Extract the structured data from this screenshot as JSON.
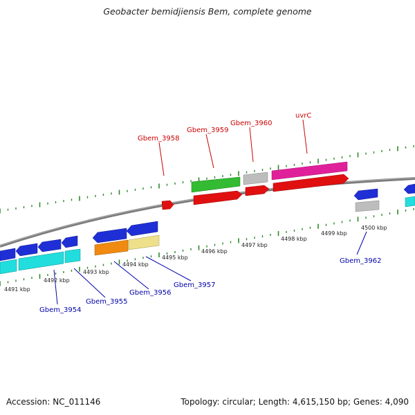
{
  "header": {
    "title": "Geobacter bemidjiensis Bem, complete genome"
  },
  "footer": {
    "accession": "Accession: NC_011146",
    "summary": "Topology: circular; Length: 4,615,150 bp; Genes: 4,090"
  },
  "scale_labels": [
    "4491 kbp",
    "4492 kbp",
    "4493 kbp",
    "4494 kbp",
    "4495 kbp",
    "4496 kbp",
    "4497 kbp",
    "4498 kbp",
    "4499 kbp",
    "4500 kbp"
  ],
  "gene_labels_top": [
    "Gbem_3958",
    "Gbem_3959",
    "Gbem_3960",
    "uvrC"
  ],
  "gene_labels_bottom": [
    "Gbem_3954",
    "Gbem_3955",
    "Gbem_3956",
    "Gbem_3957",
    "Gbem_3962"
  ],
  "colors": {
    "label_top": "#cc0000",
    "label_bottom": "#0000aa",
    "tick": "#2a8a2a",
    "backbone": "#808080",
    "blue_gene": "#1f2fd6",
    "red_gene": "#e01010",
    "green_gene": "#33bb33",
    "magenta_gene": "#e0209a",
    "gray_gene": "#b8b8b8",
    "cyan_gene": "#22dddd",
    "orange_gene": "#f08a10",
    "khaki_gene": "#eee08a"
  }
}
